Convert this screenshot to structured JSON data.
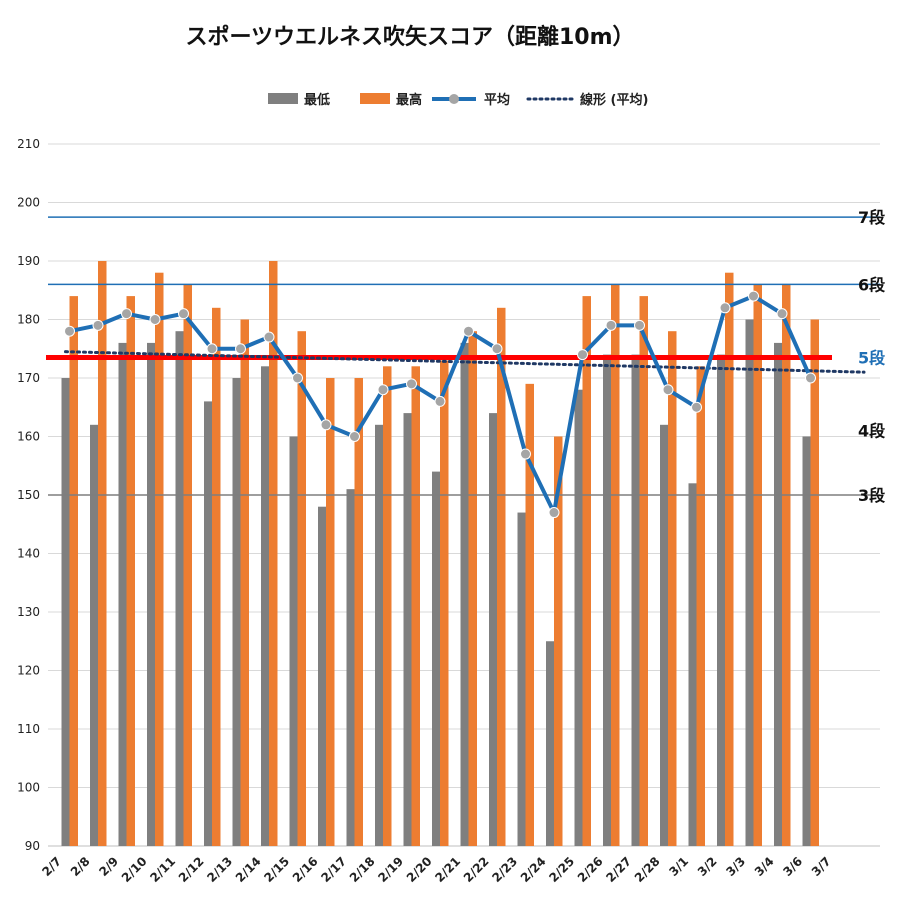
{
  "chart_data": {
    "type": "bar",
    "title": "スポーツウエルネス吹矢スコア（距離10m）",
    "xlabel": "",
    "ylabel": "",
    "ylim": [
      90,
      210
    ],
    "y_ticks": [
      90,
      100,
      110,
      120,
      130,
      140,
      150,
      160,
      170,
      180,
      190,
      200,
      210
    ],
    "categories": [
      "2/7",
      "2/8",
      "2/9",
      "2/10",
      "2/11",
      "2/12",
      "2/13",
      "2/14",
      "2/15",
      "2/16",
      "2/17",
      "2/18",
      "2/19",
      "2/20",
      "2/21",
      "2/22",
      "2/23",
      "2/24",
      "2/25",
      "2/26",
      "2/27",
      "2/28",
      "3/1",
      "3/2",
      "3/3",
      "3/4",
      "3/6",
      "3/7"
    ],
    "legend_position": "top",
    "series": [
      {
        "name": "最低",
        "type": "bar",
        "color": "#7f7f7f",
        "values": [
          170,
          162,
          176,
          176,
          178,
          166,
          170,
          172,
          160,
          148,
          151,
          162,
          164,
          154,
          176,
          164,
          147,
          125,
          168,
          174,
          174,
          162,
          152,
          174,
          180,
          176,
          160,
          null
        ]
      },
      {
        "name": "最高",
        "type": "bar",
        "color": "#ed7d31",
        "values": [
          184,
          190,
          184,
          188,
          186,
          182,
          180,
          190,
          178,
          170,
          170,
          172,
          172,
          173,
          178,
          182,
          169,
          160,
          184,
          186,
          184,
          178,
          172,
          188,
          186,
          186,
          180,
          null
        ]
      },
      {
        "name": "平均",
        "type": "line",
        "color": "#1f6fb5",
        "marker_color": "#a5a5a5",
        "values": [
          178,
          179,
          181,
          180,
          181,
          175,
          175,
          177,
          170,
          162,
          160,
          168,
          169,
          166,
          178,
          175,
          157,
          147,
          174,
          179,
          179,
          168,
          165,
          182,
          184,
          181,
          170,
          null
        ]
      },
      {
        "name": "線形 (平均)",
        "type": "trendline",
        "color": "#1f3864",
        "style": "dotted",
        "start": 174.5,
        "end": 171.0
      }
    ],
    "reference_lines": [
      {
        "label": "7段",
        "value": 197.5,
        "color": "#1f6fb5",
        "label_color": "#111111"
      },
      {
        "label": "6段",
        "value": 186,
        "color": "#1f6fb5",
        "label_color": "#111111"
      },
      {
        "label": "5段",
        "value": 173.5,
        "color": "#ff0000",
        "label_color": "#1f6fb5"
      },
      {
        "label": "4段",
        "value": 161,
        "color": null,
        "label_color": "#111111"
      },
      {
        "label": "3段",
        "value": 150,
        "color": "#7f7f7f",
        "label_color": "#111111"
      }
    ]
  }
}
